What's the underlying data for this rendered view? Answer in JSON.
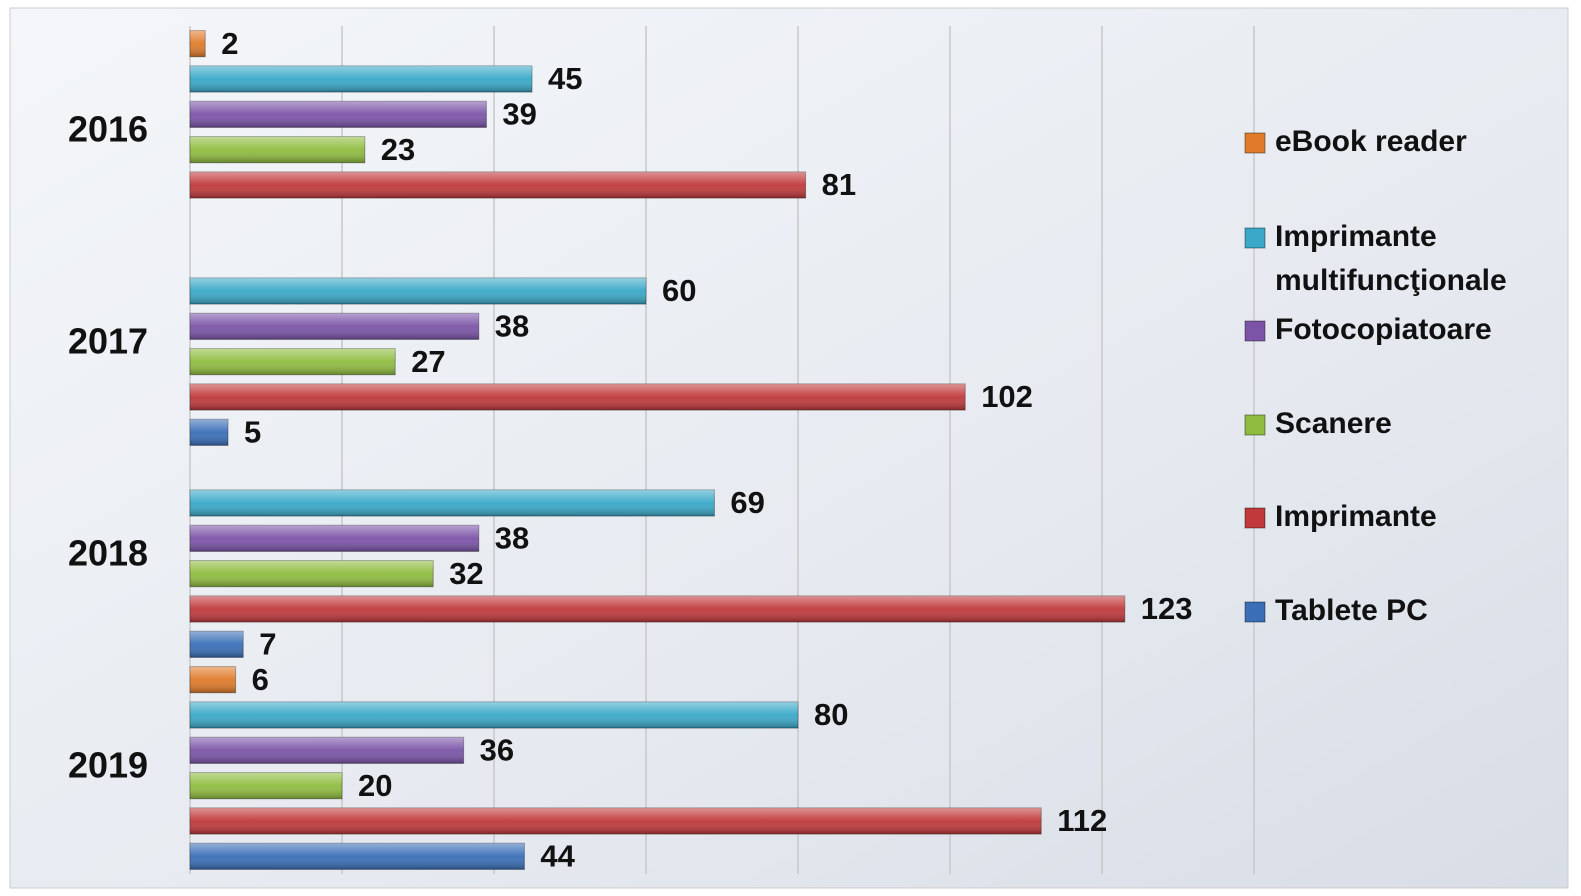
{
  "chart_data": {
    "type": "bar",
    "orientation": "horizontal",
    "categories": [
      "2016",
      "2017",
      "2018",
      "2019"
    ],
    "series": [
      {
        "name": "eBook reader",
        "color": "#e07b2a",
        "values": [
          2,
          null,
          null,
          6
        ]
      },
      {
        "name": "Imprimante multifuncţionale",
        "color": "#3aa8c8",
        "values": [
          45,
          60,
          69,
          80
        ]
      },
      {
        "name": "Fotocopiatoare",
        "color": "#7b54a8",
        "values": [
          39,
          38,
          38,
          36
        ]
      },
      {
        "name": "Scanere",
        "color": "#8fbc3f",
        "values": [
          23,
          27,
          32,
          20
        ]
      },
      {
        "name": "Imprimante",
        "color": "#c0393b",
        "values": [
          81,
          102,
          123,
          112
        ]
      },
      {
        "name": "Tablete PC",
        "color": "#3a6fb8",
        "values": [
          null,
          5,
          7,
          44
        ]
      }
    ],
    "xlim": [
      0,
      140
    ],
    "xticks": [
      0,
      20,
      40,
      60,
      80,
      100,
      120,
      140
    ],
    "grid": true,
    "legend": "right"
  }
}
